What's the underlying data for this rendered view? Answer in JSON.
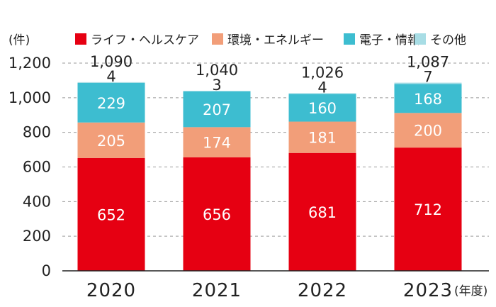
{
  "chart_data": {
    "type": "bar",
    "stacked": true,
    "categories": [
      "2020",
      "2021",
      "2022",
      "2023"
    ],
    "series": [
      {
        "name": "ライフ・ヘルスケア",
        "color": "#e60012",
        "values": [
          652,
          656,
          681,
          712
        ]
      },
      {
        "name": "環境・エネルギー",
        "color": "#f29e79",
        "values": [
          205,
          174,
          181,
          200
        ]
      },
      {
        "name": "電子・情報",
        "color": "#3dbdd0",
        "values": [
          229,
          207,
          160,
          168
        ]
      },
      {
        "name": "その他",
        "color": "#a8dde5",
        "values": [
          4,
          3,
          4,
          7
        ]
      }
    ],
    "totals": [
      "1,090",
      "1,040",
      "1,026",
      "1,087"
    ],
    "y_unit_label": "(件)",
    "x_unit_label": "(年度)",
    "ylim": [
      0,
      1200
    ],
    "yticks": [
      "0",
      "200",
      "400",
      "600",
      "800",
      "1,000",
      "1,200"
    ],
    "grid": true,
    "legend_position": "top"
  }
}
